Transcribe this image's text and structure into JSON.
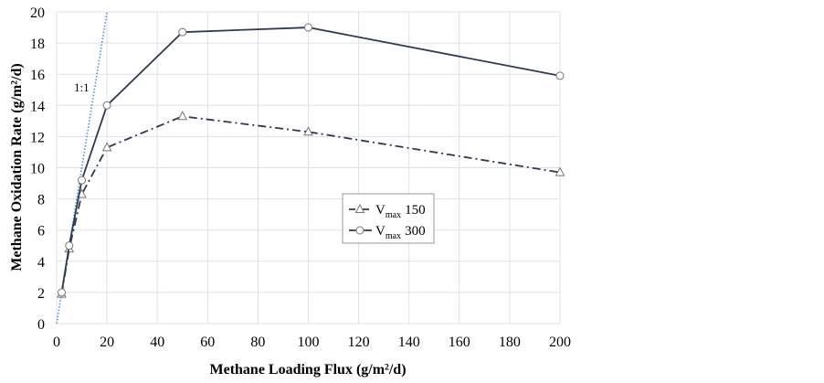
{
  "chart_data": {
    "type": "line",
    "title": "",
    "xlabel": "Methane Loading Flux (g/m²/d)",
    "ylabel": "Methane Oxidation Rate (g/m²/d)",
    "xlim": [
      0,
      200
    ],
    "ylim": [
      0,
      20
    ],
    "xticks": [
      0,
      20,
      40,
      60,
      80,
      100,
      120,
      140,
      160,
      180,
      200
    ],
    "yticks": [
      0,
      2,
      4,
      6,
      8,
      10,
      12,
      14,
      16,
      18,
      20
    ],
    "grid": true,
    "legend_position": "center-right",
    "series": [
      {
        "name": "Vmax 150",
        "label_main": "V",
        "label_sub": "max",
        "label_value": "150",
        "style": "dash-dot",
        "marker": "triangle",
        "color": "#2f3a4f",
        "x": [
          2,
          5,
          10,
          20,
          50,
          100,
          200
        ],
        "y": [
          1.9,
          4.8,
          8.3,
          11.3,
          13.3,
          12.3,
          9.7
        ]
      },
      {
        "name": "Vmax 300",
        "label_main": "V",
        "label_sub": "max",
        "label_value": "300",
        "style": "solid",
        "marker": "circle",
        "color": "#2f3a4f",
        "x": [
          2,
          5,
          10,
          20,
          50,
          100,
          200
        ],
        "y": [
          2.0,
          5.0,
          9.2,
          14.0,
          18.7,
          19.0,
          15.9
        ]
      }
    ],
    "reference_line": {
      "label": "1:1",
      "x": [
        0,
        20
      ],
      "y": [
        0,
        20
      ],
      "color": "#4a90d9",
      "style": "dotted"
    }
  }
}
